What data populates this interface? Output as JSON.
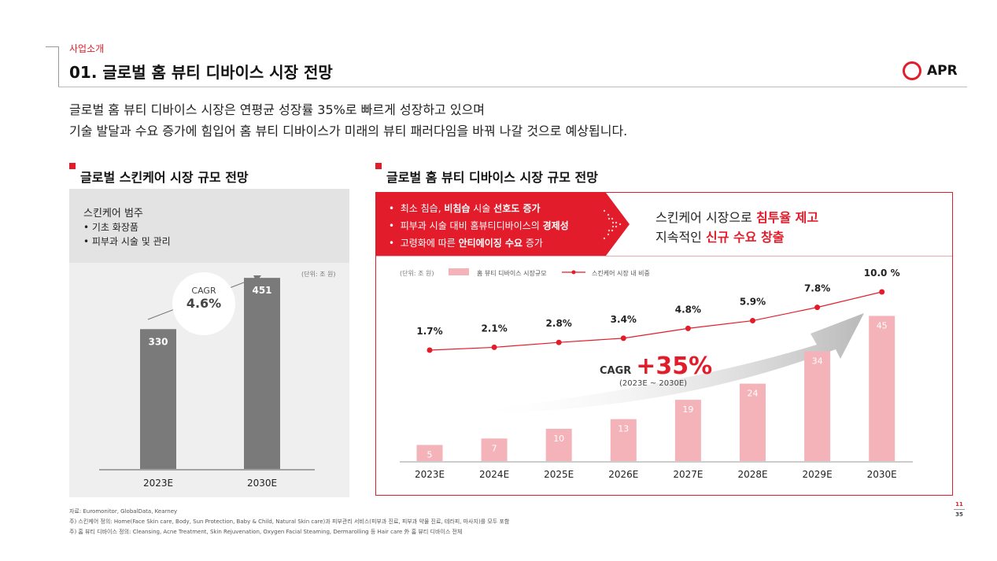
{
  "header": {
    "section": "사업소개",
    "title": "01. 글로벌 홈 뷰티 디바이스 시장 전망",
    "logo_text": "APR"
  },
  "intro": {
    "line1": "글로벌 홈 뷰티 디바이스 시장은 연평균 성장률 35%로 빠르게 성장하고 있으며",
    "line2": "기술 발달과 수요 증가에 힘입어 홈 뷰티 디바이스가 미래의 뷰티 패러다임을 바꿔 나갈 것으로 예상됩니다."
  },
  "left_section": {
    "heading": "글로벌 스킨케어 시장 규모 전망",
    "category_title": "스킨케어 범주",
    "items": [
      "• 기초 화장품",
      "• 피부과 시술 및 관리"
    ],
    "unit": "(단위: 조 원)",
    "cagr_label": "CAGR",
    "cagr_value": "4.6%"
  },
  "right_section": {
    "heading": "글로벌 홈 뷰티 디바이스 시장 규모 전망",
    "bullets": [
      {
        "pre": "최소 침습, ",
        "bold": "비침습",
        "mid": " 시술 ",
        "bold2": "선호도 증가",
        "post": ""
      },
      {
        "pre": "피부과 시술 대비 홈뷰티디바이스의 ",
        "bold": "경제성",
        "mid": "",
        "bold2": "",
        "post": ""
      },
      {
        "pre": "고령화에 따른 ",
        "bold": "안티에이징 수요",
        "mid": " 증가",
        "bold2": "",
        "post": ""
      }
    ],
    "conclusion_line1_pre": "스킨케어 시장으로 ",
    "conclusion_line1_bold": "침투율 제고",
    "conclusion_line2_pre": "지속적인 ",
    "conclusion_line2_bold": "신규 수요 창출",
    "unit": "(단위: 조 원)",
    "legend_bar": "홈 뷰티 디바이스 시장규모",
    "legend_line": "스킨케어 시장 내 비중",
    "cagr_label": "CAGR",
    "cagr_value": "+35%",
    "cagr_period": "(2023E ~ 2030E)"
  },
  "chart_data": [
    {
      "type": "bar",
      "categories": [
        "2023E",
        "2030E"
      ],
      "values": [
        330,
        451
      ],
      "ylim": [
        0,
        520
      ],
      "grid": false,
      "colors": {
        "bar": "#7a7a7a"
      }
    },
    {
      "type": "bar",
      "categories": [
        "2023E",
        "2024E",
        "2025E",
        "2026E",
        "2027E",
        "2028E",
        "2029E",
        "2030E"
      ],
      "series": [
        {
          "name": "홈 뷰티 디바이스 시장규모",
          "type": "bar",
          "values": [
            5,
            7,
            10,
            13,
            19,
            24,
            34,
            45
          ],
          "color": "#f4b3b8"
        },
        {
          "name": "스킨케어 시장 내 비중",
          "type": "line",
          "values": [
            1.7,
            2.1,
            2.8,
            3.4,
            4.8,
            5.9,
            7.8,
            10.0
          ],
          "labels": [
            "1.7%",
            "2.1%",
            "2.8%",
            "3.4%",
            "4.8%",
            "5.9%",
            "7.8%",
            "10.0 %"
          ],
          "color": "#e21c2a"
        }
      ],
      "grid": false,
      "legend": "top-left"
    }
  ],
  "footer": {
    "line1": "자료: Euromonitor, GlobalData, Kearney",
    "line2": "주) 스킨케어 정의: Home(Face Skin care, Body, Sun Protection, Baby & Child, Natural Skin care)과 피부관리 서비스(피부과 진료, 피부과 약물 진료, 테라피, 마사지)를 모두 포함",
    "line3": "주) 홈 뷰티 디바이스 정의: Cleansing, Acne Treatment, Skin Rejuvenation, Oxygen Facial Steaming, Dermarolling 등 Hair care 外 홈 뷰티 디바이스 전체",
    "page_current": "11",
    "page_total": "35"
  },
  "colors": {
    "accent": "#e21c2a",
    "pink": "#f4b3b8",
    "grey_bar": "#7a7a7a"
  }
}
